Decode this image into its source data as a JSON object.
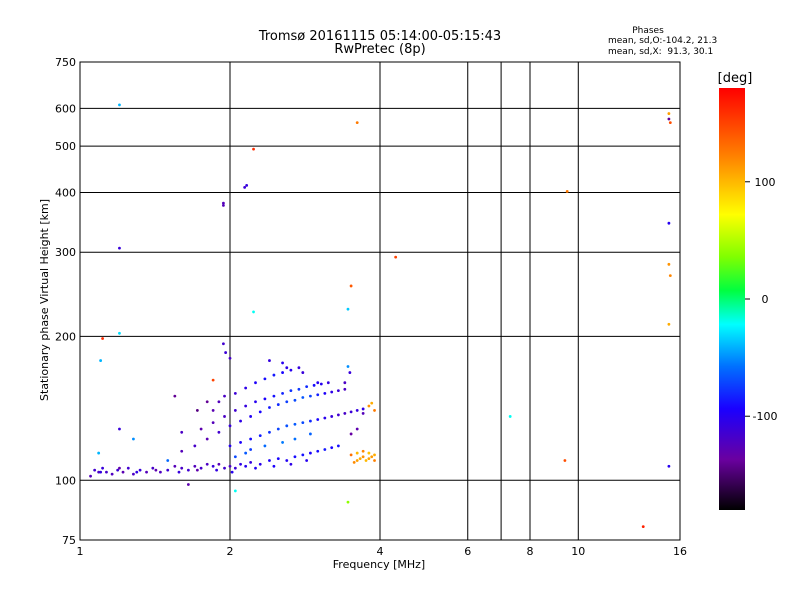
{
  "chart_data": {
    "type": "scatter",
    "title": "Tromsø 20161115 05:14:00-05:15:43",
    "subtitle": "RwPretec (8p)",
    "stats": {
      "heading": "Phases",
      "line_o": "mean, sd,O:-104.2, 21.3",
      "line_x": "mean, sd,X:  91.3, 30.1"
    },
    "xlabel": "Frequency [MHz]",
    "ylabel": "Stationary phase Virtual Height [km]",
    "xscale": "log",
    "yscale": "log",
    "xlim": [
      1,
      16
    ],
    "ylim": [
      75,
      750
    ],
    "x_ticks": [
      1,
      2,
      4,
      6,
      7,
      8,
      10,
      16
    ],
    "x_tick_labels": [
      "1",
      "2",
      "4",
      "6",
      "",
      "8",
      "10",
      "16"
    ],
    "y_ticks": [
      75,
      100,
      200,
      300,
      400,
      500,
      600,
      750
    ],
    "y_tick_labels": [
      "75",
      "100",
      "200",
      "300",
      "400",
      "500",
      "600",
      "750"
    ],
    "grid": true,
    "colorbar": {
      "label": "[deg]",
      "range": [
        -180,
        180
      ],
      "ticks": [
        100,
        0,
        -100
      ],
      "tick_labels": [
        "100",
        "0",
        "-100"
      ]
    },
    "points": [
      {
        "x": 1.05,
        "y": 102,
        "c": -125
      },
      {
        "x": 1.07,
        "y": 105,
        "c": -115
      },
      {
        "x": 1.09,
        "y": 104,
        "c": -120
      },
      {
        "x": 1.11,
        "y": 106,
        "c": -110
      },
      {
        "x": 1.13,
        "y": 104,
        "c": -118
      },
      {
        "x": 1.16,
        "y": 103,
        "c": -122
      },
      {
        "x": 1.19,
        "y": 105,
        "c": -112
      },
      {
        "x": 1.22,
        "y": 104,
        "c": -128
      },
      {
        "x": 1.25,
        "y": 106,
        "c": -115
      },
      {
        "x": 1.28,
        "y": 103,
        "c": -120
      },
      {
        "x": 1.32,
        "y": 105,
        "c": -110
      },
      {
        "x": 1.36,
        "y": 104,
        "c": -125
      },
      {
        "x": 1.4,
        "y": 106,
        "c": -118
      },
      {
        "x": 1.45,
        "y": 104,
        "c": -122
      },
      {
        "x": 1.5,
        "y": 105,
        "c": -113
      },
      {
        "x": 1.55,
        "y": 107,
        "c": -126
      },
      {
        "x": 1.6,
        "y": 106,
        "c": -119
      },
      {
        "x": 1.65,
        "y": 105,
        "c": -114
      },
      {
        "x": 1.7,
        "y": 107,
        "c": -124
      },
      {
        "x": 1.75,
        "y": 106,
        "c": -117
      },
      {
        "x": 1.8,
        "y": 108,
        "c": -121
      },
      {
        "x": 1.85,
        "y": 107,
        "c": -110
      },
      {
        "x": 1.9,
        "y": 108,
        "c": -127
      },
      {
        "x": 1.95,
        "y": 106,
        "c": -116
      },
      {
        "x": 2.0,
        "y": 107,
        "c": -120
      },
      {
        "x": 2.05,
        "y": 106,
        "c": -112
      },
      {
        "x": 2.1,
        "y": 108,
        "c": -105
      },
      {
        "x": 2.15,
        "y": 107,
        "c": -100
      },
      {
        "x": 2.2,
        "y": 109,
        "c": -108
      },
      {
        "x": 2.3,
        "y": 108,
        "c": -102
      },
      {
        "x": 2.4,
        "y": 110,
        "c": -96
      },
      {
        "x": 2.5,
        "y": 111,
        "c": -92
      },
      {
        "x": 2.6,
        "y": 110,
        "c": -98
      },
      {
        "x": 2.7,
        "y": 112,
        "c": -90
      },
      {
        "x": 2.8,
        "y": 113,
        "c": -88
      },
      {
        "x": 2.9,
        "y": 114,
        "c": -94
      },
      {
        "x": 3.0,
        "y": 115,
        "c": -90
      },
      {
        "x": 3.1,
        "y": 116,
        "c": -86
      },
      {
        "x": 3.2,
        "y": 117,
        "c": -92
      },
      {
        "x": 3.3,
        "y": 118,
        "c": -88
      },
      {
        "x": 1.1,
        "y": 104,
        "c": -108
      },
      {
        "x": 1.2,
        "y": 106,
        "c": -132
      },
      {
        "x": 1.3,
        "y": 104,
        "c": -106
      },
      {
        "x": 1.42,
        "y": 105,
        "c": -130
      },
      {
        "x": 1.58,
        "y": 104,
        "c": -109
      },
      {
        "x": 1.72,
        "y": 105,
        "c": -131
      },
      {
        "x": 1.88,
        "y": 105,
        "c": -107
      },
      {
        "x": 2.02,
        "y": 104,
        "c": -100
      },
      {
        "x": 2.25,
        "y": 106,
        "c": -98
      },
      {
        "x": 2.45,
        "y": 107,
        "c": -94
      },
      {
        "x": 2.65,
        "y": 108,
        "c": -104
      },
      {
        "x": 2.85,
        "y": 110,
        "c": -100
      },
      {
        "x": 1.6,
        "y": 115,
        "c": -125
      },
      {
        "x": 1.7,
        "y": 118,
        "c": -118
      },
      {
        "x": 1.8,
        "y": 122,
        "c": -128
      },
      {
        "x": 1.9,
        "y": 126,
        "c": -115
      },
      {
        "x": 2.0,
        "y": 130,
        "c": -110
      },
      {
        "x": 2.1,
        "y": 133,
        "c": -104
      },
      {
        "x": 2.2,
        "y": 136,
        "c": -98
      },
      {
        "x": 2.3,
        "y": 139,
        "c": -92
      },
      {
        "x": 2.4,
        "y": 142,
        "c": -86
      },
      {
        "x": 2.5,
        "y": 144,
        "c": -80
      },
      {
        "x": 2.6,
        "y": 146,
        "c": -74
      },
      {
        "x": 2.7,
        "y": 147,
        "c": -70
      },
      {
        "x": 2.8,
        "y": 149,
        "c": -66
      },
      {
        "x": 2.9,
        "y": 150,
        "c": -72
      },
      {
        "x": 3.0,
        "y": 151,
        "c": -84
      },
      {
        "x": 3.1,
        "y": 152,
        "c": -96
      },
      {
        "x": 3.2,
        "y": 153,
        "c": -104
      },
      {
        "x": 3.3,
        "y": 154,
        "c": -112
      },
      {
        "x": 3.4,
        "y": 155,
        "c": -120
      },
      {
        "x": 1.75,
        "y": 128,
        "c": -130
      },
      {
        "x": 1.85,
        "y": 132,
        "c": -125
      },
      {
        "x": 1.95,
        "y": 136,
        "c": -120
      },
      {
        "x": 2.05,
        "y": 140,
        "c": -114
      },
      {
        "x": 2.15,
        "y": 143,
        "c": -108
      },
      {
        "x": 2.25,
        "y": 146,
        "c": -100
      },
      {
        "x": 2.35,
        "y": 148,
        "c": -94
      },
      {
        "x": 2.45,
        "y": 150,
        "c": -88
      },
      {
        "x": 2.55,
        "y": 152,
        "c": -82
      },
      {
        "x": 2.65,
        "y": 154,
        "c": -78
      },
      {
        "x": 2.75,
        "y": 155,
        "c": -76
      },
      {
        "x": 2.85,
        "y": 157,
        "c": -80
      },
      {
        "x": 2.95,
        "y": 158,
        "c": -90
      },
      {
        "x": 3.05,
        "y": 159,
        "c": -100
      },
      {
        "x": 3.15,
        "y": 160,
        "c": -108
      },
      {
        "x": 2.0,
        "y": 118,
        "c": -100
      },
      {
        "x": 2.1,
        "y": 120,
        "c": -95
      },
      {
        "x": 2.2,
        "y": 122,
        "c": -90
      },
      {
        "x": 2.3,
        "y": 124,
        "c": -84
      },
      {
        "x": 2.4,
        "y": 126,
        "c": -78
      },
      {
        "x": 2.5,
        "y": 128,
        "c": -72
      },
      {
        "x": 2.6,
        "y": 130,
        "c": -68
      },
      {
        "x": 2.7,
        "y": 131,
        "c": -65
      },
      {
        "x": 2.8,
        "y": 132,
        "c": -70
      },
      {
        "x": 2.9,
        "y": 133,
        "c": -80
      },
      {
        "x": 3.0,
        "y": 134,
        "c": -92
      },
      {
        "x": 3.1,
        "y": 135,
        "c": -102
      },
      {
        "x": 3.2,
        "y": 136,
        "c": -110
      },
      {
        "x": 3.3,
        "y": 137,
        "c": -115
      },
      {
        "x": 3.4,
        "y": 138,
        "c": -118
      },
      {
        "x": 3.5,
        "y": 139,
        "c": -112
      },
      {
        "x": 3.6,
        "y": 140,
        "c": -108
      },
      {
        "x": 3.7,
        "y": 141,
        "c": -104
      },
      {
        "x": 1.85,
        "y": 140,
        "c": -128
      },
      {
        "x": 1.9,
        "y": 146,
        "c": -124
      },
      {
        "x": 1.95,
        "y": 150,
        "c": -120
      },
      {
        "x": 2.05,
        "y": 152,
        "c": -112
      },
      {
        "x": 2.15,
        "y": 156,
        "c": -104
      },
      {
        "x": 2.25,
        "y": 160,
        "c": -96
      },
      {
        "x": 2.35,
        "y": 163,
        "c": -90
      },
      {
        "x": 2.45,
        "y": 166,
        "c": -86
      },
      {
        "x": 2.55,
        "y": 168,
        "c": -92
      },
      {
        "x": 2.65,
        "y": 170,
        "c": -100
      },
      {
        "x": 2.75,
        "y": 172,
        "c": -108
      },
      {
        "x": 1.96,
        "y": 185,
        "c": -112
      },
      {
        "x": 2.0,
        "y": 180,
        "c": -118
      },
      {
        "x": 2.4,
        "y": 178,
        "c": -108
      },
      {
        "x": 2.55,
        "y": 176,
        "c": -100
      },
      {
        "x": 2.6,
        "y": 172,
        "c": -104
      },
      {
        "x": 2.8,
        "y": 168,
        "c": -110
      },
      {
        "x": 3.0,
        "y": 160,
        "c": -100
      },
      {
        "x": 3.4,
        "y": 160,
        "c": -120
      },
      {
        "x": 3.45,
        "y": 173,
        "c": -50
      },
      {
        "x": 3.48,
        "y": 168,
        "c": -110
      },
      {
        "x": 1.55,
        "y": 150,
        "c": -140
      },
      {
        "x": 1.6,
        "y": 126,
        "c": -120
      },
      {
        "x": 1.72,
        "y": 140,
        "c": -145
      },
      {
        "x": 1.8,
        "y": 146,
        "c": -140
      },
      {
        "x": 2.05,
        "y": 112,
        "c": -70
      },
      {
        "x": 2.15,
        "y": 114,
        "c": -65
      },
      {
        "x": 2.2,
        "y": 116,
        "c": -75
      },
      {
        "x": 2.35,
        "y": 118,
        "c": -60
      },
      {
        "x": 2.55,
        "y": 120,
        "c": -55
      },
      {
        "x": 2.7,
        "y": 122,
        "c": -58
      },
      {
        "x": 2.9,
        "y": 125,
        "c": -62
      },
      {
        "x": 3.6,
        "y": 110,
        "c": 110
      },
      {
        "x": 3.65,
        "y": 111,
        "c": 105
      },
      {
        "x": 3.7,
        "y": 112,
        "c": 115
      },
      {
        "x": 3.75,
        "y": 110,
        "c": 100
      },
      {
        "x": 3.8,
        "y": 111,
        "c": 108
      },
      {
        "x": 3.85,
        "y": 112,
        "c": 112
      },
      {
        "x": 3.9,
        "y": 113,
        "c": 104
      },
      {
        "x": 3.55,
        "y": 109,
        "c": 118
      },
      {
        "x": 3.6,
        "y": 114,
        "c": 100
      },
      {
        "x": 3.7,
        "y": 115,
        "c": 120
      },
      {
        "x": 3.8,
        "y": 114,
        "c": 96
      },
      {
        "x": 3.9,
        "y": 110,
        "c": 122
      },
      {
        "x": 3.5,
        "y": 113,
        "c": 130
      },
      {
        "x": 3.5,
        "y": 125,
        "c": -135
      },
      {
        "x": 3.6,
        "y": 128,
        "c": -130
      },
      {
        "x": 3.8,
        "y": 143,
        "c": 115
      },
      {
        "x": 3.85,
        "y": 145,
        "c": 105
      },
      {
        "x": 3.9,
        "y": 140,
        "c": 125
      },
      {
        "x": 3.7,
        "y": 138,
        "c": -125
      },
      {
        "x": 1.2,
        "y": 128,
        "c": -110
      },
      {
        "x": 1.28,
        "y": 122,
        "c": -50
      },
      {
        "x": 1.5,
        "y": 110,
        "c": -60
      },
      {
        "x": 1.65,
        "y": 98,
        "c": -130
      },
      {
        "x": 1.1,
        "y": 178,
        "c": -40
      },
      {
        "x": 1.2,
        "y": 610,
        "c": -40
      },
      {
        "x": 1.2,
        "y": 306,
        "c": -110
      },
      {
        "x": 1.2,
        "y": 203,
        "c": -30
      },
      {
        "x": 1.11,
        "y": 198,
        "c": 160
      },
      {
        "x": 1.09,
        "y": 114,
        "c": -40
      },
      {
        "x": 1.94,
        "y": 380,
        "c": -125
      },
      {
        "x": 1.94,
        "y": 376,
        "c": -125
      },
      {
        "x": 2.14,
        "y": 410,
        "c": -112
      },
      {
        "x": 2.16,
        "y": 414,
        "c": -108
      },
      {
        "x": 2.23,
        "y": 493,
        "c": 160
      },
      {
        "x": 2.23,
        "y": 225,
        "c": -20
      },
      {
        "x": 1.94,
        "y": 193,
        "c": -115
      },
      {
        "x": 2.05,
        "y": 95,
        "c": -20
      },
      {
        "x": 1.85,
        "y": 162,
        "c": 150
      },
      {
        "x": 3.45,
        "y": 228,
        "c": -35
      },
      {
        "x": 3.5,
        "y": 255,
        "c": 140
      },
      {
        "x": 3.6,
        "y": 560,
        "c": 125
      },
      {
        "x": 3.45,
        "y": 90,
        "c": 40
      },
      {
        "x": 4.3,
        "y": 293,
        "c": 150
      },
      {
        "x": 7.3,
        "y": 136,
        "c": -20
      },
      {
        "x": 9.4,
        "y": 110,
        "c": 145
      },
      {
        "x": 9.5,
        "y": 402,
        "c": 125
      },
      {
        "x": 13.5,
        "y": 80,
        "c": 165
      },
      {
        "x": 15.2,
        "y": 585,
        "c": 110
      },
      {
        "x": 15.2,
        "y": 570,
        "c": -140
      },
      {
        "x": 15.3,
        "y": 560,
        "c": 145
      },
      {
        "x": 15.2,
        "y": 345,
        "c": -100
      },
      {
        "x": 15.2,
        "y": 283,
        "c": 115
      },
      {
        "x": 15.3,
        "y": 268,
        "c": 120
      },
      {
        "x": 15.2,
        "y": 212,
        "c": 105
      },
      {
        "x": 15.2,
        "y": 107,
        "c": -100
      }
    ]
  }
}
